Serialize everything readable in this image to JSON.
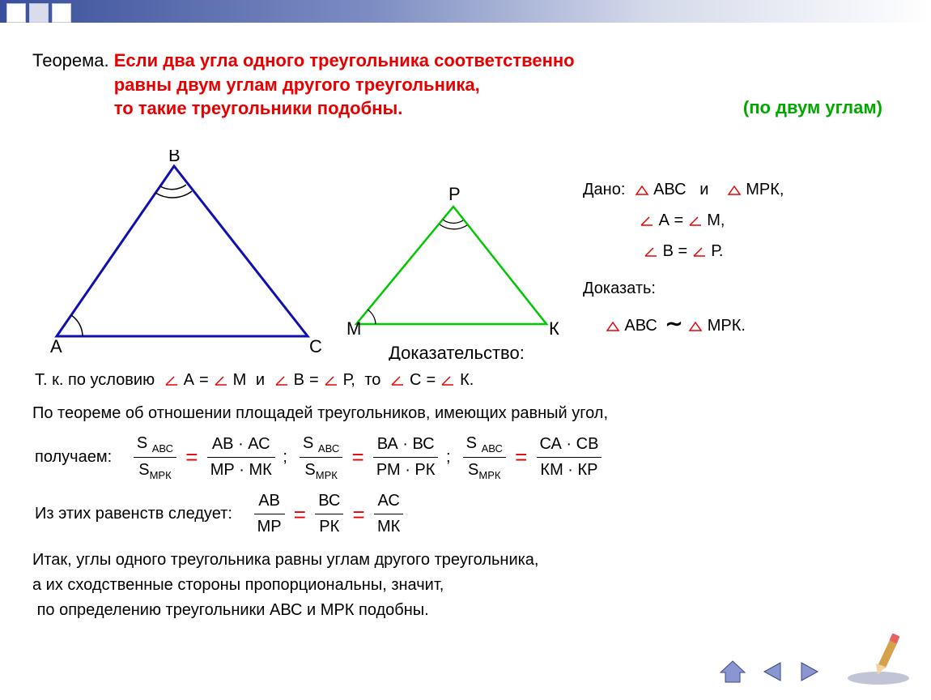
{
  "header": {
    "gradient_from": "#3a4f9a",
    "gradient_to": "#ffffff"
  },
  "theorem": {
    "label": "Теорема.",
    "line1": "Если два угла одного треугольника соответственно",
    "line2": "равны двум углам другого треугольника,",
    "line3": "то такие треугольники подобны.",
    "side_note": "(по двум углам)"
  },
  "triangles": {
    "abc": {
      "labels": {
        "A": "A",
        "B": "B",
        "C": "C"
      },
      "color": "#1010b0",
      "stroke_width": 3,
      "points": {
        "A": [
          30,
          230
        ],
        "B": [
          175,
          20
        ],
        "C": [
          340,
          230
        ]
      }
    },
    "mpk": {
      "labels": {
        "M": "M",
        "P": "P",
        "K": "К"
      },
      "color": "#00c800",
      "stroke_width": 2.5,
      "points": {
        "M": [
          400,
          215
        ],
        "P": [
          520,
          70
        ],
        "K": [
          635,
          215
        ]
      }
    },
    "angle_arc_color": "#000000"
  },
  "given": {
    "label": "Дано:",
    "t1": "АВС",
    "and": "и",
    "t2": "МРК,",
    "eq1_l": "А",
    "eq1_r": "М,",
    "eq2_l": "В",
    "eq2_r": "Р.",
    "prove_label": "Доказать:",
    "prove_t1": "АВС",
    "prove_sim": "~",
    "prove_t2": "МРК."
  },
  "proof": {
    "title": "Доказательство:",
    "line_cond_pre": "Т. к. по условию",
    "cond_a": "А",
    "cond_m": "М",
    "cond_and": "и",
    "cond_b": "В",
    "cond_p": "Р,",
    "cond_then": "то",
    "cond_c": "С",
    "cond_k": "К.",
    "line_area": "По теореме об отношении площадей треугольников, имеющих равный угол,",
    "line_get": "получаем:",
    "ratios": [
      {
        "n1": "S <sub>АВС</sub>",
        "d1": "S<sub>МРК</sub>",
        "n2": "АВ · АС",
        "d2": "МР · МК"
      },
      {
        "n1": "S <sub>АВС</sub>",
        "d1": "S<sub>МРК</sub>",
        "n2": "ВА · ВС",
        "d2": "РМ · РК"
      },
      {
        "n1": "S <sub>АВС</sub>",
        "d1": "S<sub>МРК</sub>",
        "n2": "СА · СВ",
        "d2": "КМ · КР"
      }
    ],
    "line_follows": "Из этих равенств следует:",
    "sides": [
      {
        "n": "АВ",
        "d": "МР"
      },
      {
        "n": "ВС",
        "d": "РК"
      },
      {
        "n": "АС",
        "d": "МК"
      }
    ],
    "line_so1": "Итак, углы одного треугольника равны углам другого треугольника,",
    "line_so2": "а их сходственные стороны пропорциональны, значит,",
    "line_so3": "по определению треугольники АВС и МРК подобны."
  },
  "colors": {
    "red": "#e80000",
    "blue": "#1010b0",
    "green": "#00c800",
    "green_text": "#00a800",
    "nav_fill": "#4a5eab"
  }
}
